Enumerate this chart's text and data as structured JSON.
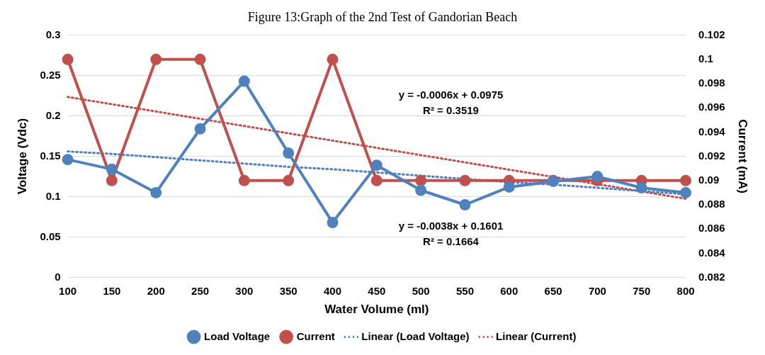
{
  "chart_data": {
    "type": "line",
    "title": "Figure 13:Graph of the 2nd Test of Gandorian Beach",
    "xlabel": "Water Volume (ml)",
    "ylabel": "Voltage (Vdc)",
    "y2label": "Current (mA)",
    "categories": [
      "100",
      "150",
      "200",
      "250",
      "300",
      "350",
      "400",
      "450",
      "500",
      "550",
      "600",
      "650",
      "700",
      "750",
      "800"
    ],
    "series": [
      {
        "name": "Load Voltage",
        "color": "#4f81bd",
        "values": [
          0.146,
          0.134,
          0.105,
          0.184,
          0.243,
          0.154,
          0.068,
          0.139,
          0.108,
          0.09,
          0.112,
          0.119,
          0.125,
          0.111,
          0.105
        ]
      },
      {
        "name": "Current",
        "color": "#c0504d",
        "axis": "y2",
        "values": [
          0.1,
          0.09,
          0.1,
          0.1,
          0.09,
          0.09,
          0.1,
          0.09,
          0.09,
          0.09,
          0.09,
          0.09,
          0.09,
          0.09,
          0.09
        ]
      },
      {
        "name": "Linear (Load Voltage)",
        "color": "#4f81bd",
        "marker": "none",
        "line_style": "dotted",
        "values": [
          0.156,
          0.153,
          0.149,
          0.145,
          0.141,
          0.137,
          0.134,
          0.13,
          0.126,
          0.122,
          0.118,
          0.115,
          0.111,
          0.107,
          0.103
        ]
      },
      {
        "name": "Linear (Current)",
        "color": "#c0504d",
        "axis": "y2",
        "marker": "none",
        "line_style": "dotted",
        "values": [
          0.0969,
          0.0963,
          0.0957,
          0.0951,
          0.0945,
          0.0939,
          0.0933,
          0.0927,
          0.0921,
          0.0915,
          0.0909,
          0.0903,
          0.0897,
          0.0891,
          0.0885
        ]
      }
    ],
    "ylim": [
      0,
      0.3
    ],
    "yticks": [
      0,
      0.05,
      0.1,
      0.15,
      0.2,
      0.25,
      0.3
    ],
    "y2lim": [
      0.082,
      0.102
    ],
    "y2ticks": [
      0.082,
      0.084,
      0.086,
      0.088,
      0.09,
      0.092,
      0.094,
      0.096,
      0.098,
      0.1,
      0.102
    ],
    "annotations": [
      "y = -0.0006x + 0.0975\nR² = 0.3519",
      "y = -0.0038x + 0.1601\nR² = 0.1664"
    ],
    "grid": "y",
    "legend": "bottom",
    "marker": "circle",
    "line_style": "solid"
  }
}
